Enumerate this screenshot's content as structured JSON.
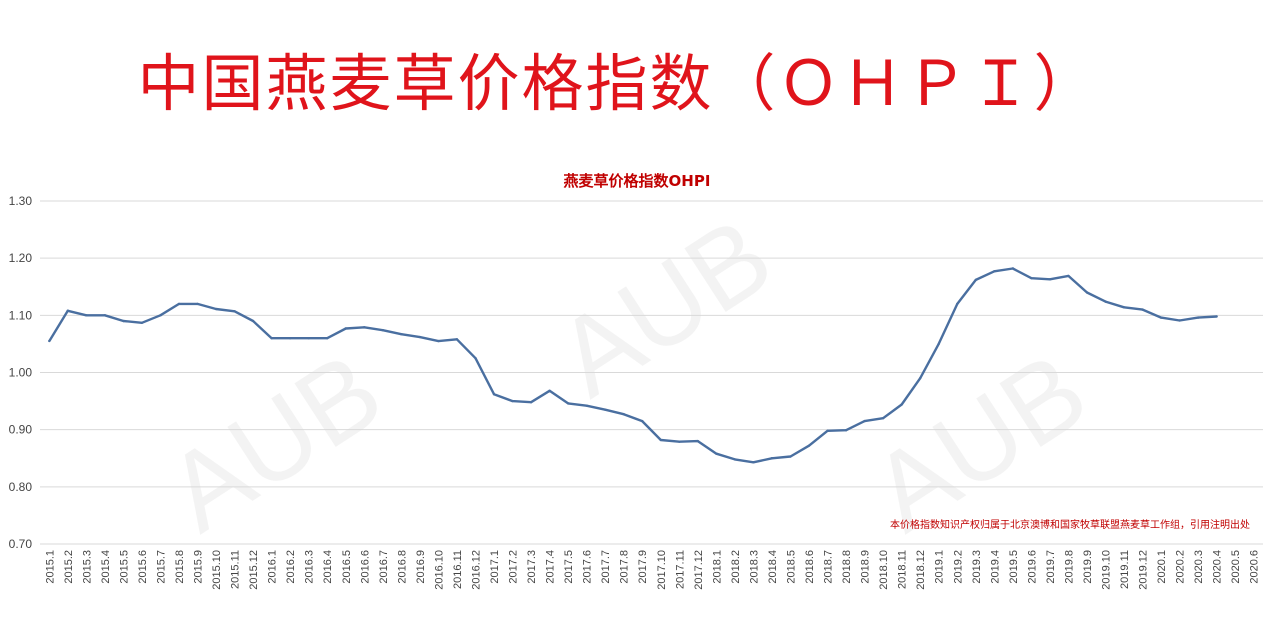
{
  "banner": {
    "title": "中国燕麦草价格指数（ＯＨＰＩ）"
  },
  "watermark": {
    "text": "AUB"
  },
  "note": "本价格指数知识产权归属于北京澳博和国家牧草联盟燕麦草工作组，引用注明出处",
  "colors": {
    "title": "#e0141b",
    "line": "#4a6fa0",
    "note": "#c00000"
  },
  "chart_data": {
    "type": "line",
    "title": "燕麦草价格指数OHPI",
    "xlabel": "",
    "ylabel": "",
    "ylim": [
      0.7,
      1.3
    ],
    "yticks": [
      "1.30",
      "1.20",
      "1.10",
      "1.00",
      "0.90",
      "0.80",
      "0.70"
    ],
    "grid": true,
    "categories": [
      "2015.1",
      "2015.2",
      "2015.3",
      "2015.4",
      "2015.5",
      "2015.6",
      "2015.7",
      "2015.8",
      "2015.9",
      "2015.10",
      "2015.11",
      "2015.12",
      "2016.1",
      "2016.2",
      "2016.3",
      "2016.4",
      "2016.5",
      "2016.6",
      "2016.7",
      "2016.8",
      "2016.9",
      "2016.10",
      "2016.11",
      "2016.12",
      "2017.1",
      "2017.2",
      "2017.3",
      "2017.4",
      "2017.5",
      "2017.6",
      "2017.7",
      "2017.8",
      "2017.9",
      "2017.10",
      "2017.11",
      "2017.12",
      "2018.1",
      "2018.2",
      "2018.3",
      "2018.4",
      "2018.5",
      "2018.6",
      "2018.7",
      "2018.8",
      "2018.9",
      "2018.10",
      "2018.11",
      "2018.12",
      "2019.1",
      "2019.2",
      "2019.3",
      "2019.4",
      "2019.5",
      "2019.6",
      "2019.7",
      "2019.8",
      "2019.9",
      "2019.10",
      "2019.11",
      "2019.12",
      "2020.1",
      "2020.2",
      "2020.3",
      "2020.4",
      "2020.5",
      "2020.6"
    ],
    "values": [
      1.055,
      1.108,
      1.1,
      1.1,
      1.09,
      1.087,
      1.1,
      1.12,
      1.12,
      1.111,
      1.107,
      1.09,
      1.06,
      1.06,
      1.06,
      1.06,
      1.077,
      1.079,
      1.074,
      1.067,
      1.062,
      1.055,
      1.058,
      1.025,
      0.962,
      0.95,
      0.948,
      0.968,
      0.946,
      0.942,
      0.935,
      0.927,
      0.915,
      0.882,
      0.879,
      0.88,
      0.858,
      0.848,
      0.843,
      0.85,
      0.853,
      0.872,
      0.898,
      0.899,
      0.915,
      0.92,
      0.944,
      0.99,
      1.05,
      1.12,
      1.162,
      1.177,
      1.182,
      1.165,
      1.163,
      1.169,
      1.14,
      1.124,
      1.114,
      1.11,
      1.096,
      1.091,
      1.096,
      1.098,
      null,
      null
    ]
  }
}
